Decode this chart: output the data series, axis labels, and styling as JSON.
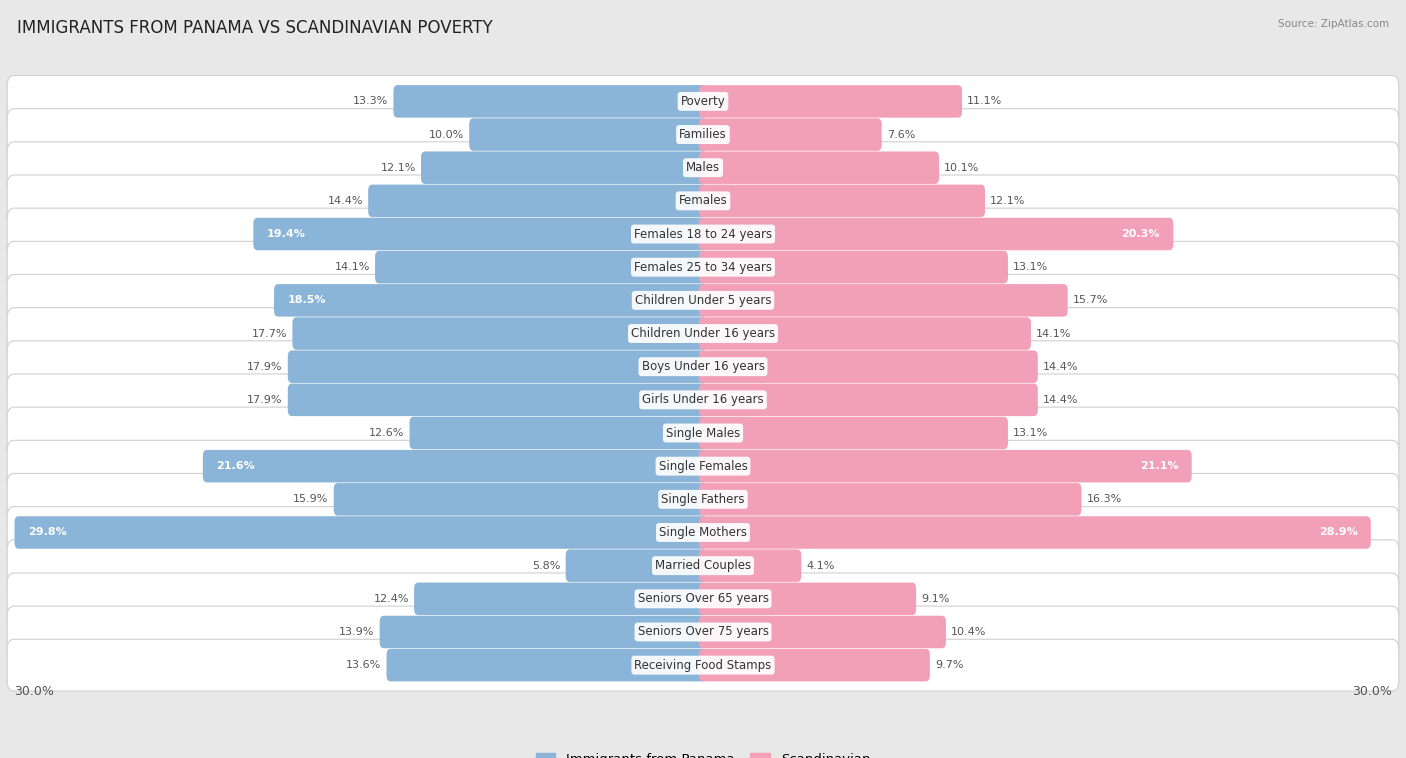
{
  "title": "IMMIGRANTS FROM PANAMA VS SCANDINAVIAN POVERTY",
  "source": "Source: ZipAtlas.com",
  "categories": [
    "Poverty",
    "Families",
    "Males",
    "Females",
    "Females 18 to 24 years",
    "Females 25 to 34 years",
    "Children Under 5 years",
    "Children Under 16 years",
    "Boys Under 16 years",
    "Girls Under 16 years",
    "Single Males",
    "Single Females",
    "Single Fathers",
    "Single Mothers",
    "Married Couples",
    "Seniors Over 65 years",
    "Seniors Over 75 years",
    "Receiving Food Stamps"
  ],
  "panama_values": [
    13.3,
    10.0,
    12.1,
    14.4,
    19.4,
    14.1,
    18.5,
    17.7,
    17.9,
    17.9,
    12.6,
    21.6,
    15.9,
    29.8,
    5.8,
    12.4,
    13.9,
    13.6
  ],
  "scandinavian_values": [
    11.1,
    7.6,
    10.1,
    12.1,
    20.3,
    13.1,
    15.7,
    14.1,
    14.4,
    14.4,
    13.1,
    21.1,
    16.3,
    28.9,
    4.1,
    9.1,
    10.4,
    9.7
  ],
  "panama_color": "#8ab4d8",
  "scandinavian_color": "#f2a0b8",
  "max_value": 30.0,
  "bg_color": "#e8e8e8",
  "label_fontsize": 8.5,
  "title_fontsize": 12,
  "value_fontsize": 8,
  "inside_value_threshold": 18.5
}
